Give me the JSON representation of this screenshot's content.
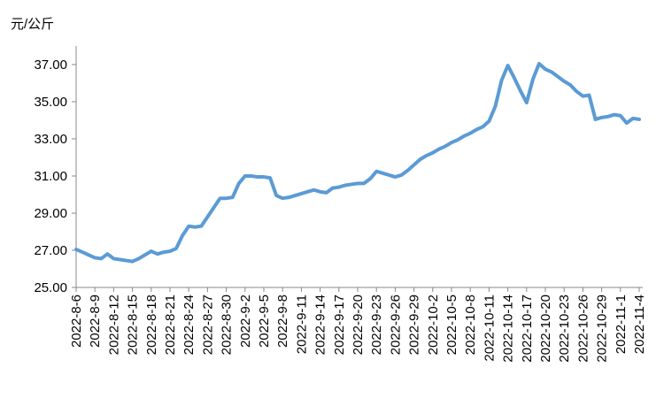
{
  "chart_data": {
    "type": "line",
    "y_label": "元/公斤",
    "color": "#5b9bd5",
    "categories": [
      "2022-8-6",
      null,
      null,
      "2022-8-9",
      null,
      null,
      "2022-8-12",
      null,
      null,
      "2022-8-15",
      null,
      null,
      "2022-8-18",
      null,
      null,
      "2022-8-21",
      null,
      null,
      "2022-8-24",
      null,
      null,
      "2022-8-27",
      null,
      null,
      "2022-8-30",
      null,
      null,
      "2022-9-2",
      null,
      null,
      "2022-9-5",
      null,
      null,
      "2022-9-8",
      null,
      null,
      "2022-9-11",
      null,
      null,
      "2022-9-14",
      null,
      null,
      "2022-9-17",
      null,
      null,
      "2022-9-20",
      null,
      null,
      "2022-9-23",
      null,
      null,
      "2022-9-26",
      null,
      null,
      "2022-9-29",
      null,
      null,
      "2022-10-2",
      null,
      null,
      "2022-10-5",
      null,
      null,
      "2022-10-8",
      null,
      null,
      "2022-10-11",
      null,
      null,
      "2022-10-14",
      null,
      null,
      "2022-10-17",
      null,
      null,
      "2022-10-20",
      null,
      null,
      "2022-10-23",
      null,
      null,
      "2022-10-26",
      null,
      null,
      "2022-10-29",
      null,
      null,
      "2022-11-1",
      null,
      null,
      "2022-11-4"
    ],
    "values": [
      27.05,
      26.9,
      26.75,
      26.6,
      26.55,
      26.8,
      26.55,
      26.5,
      26.45,
      26.4,
      26.55,
      26.75,
      26.95,
      26.8,
      26.9,
      26.95,
      27.1,
      27.8,
      28.3,
      28.25,
      28.3,
      28.8,
      29.3,
      29.8,
      29.8,
      29.85,
      30.6,
      31.0,
      31.0,
      30.95,
      30.95,
      30.9,
      29.95,
      29.8,
      29.85,
      29.95,
      30.05,
      30.15,
      30.25,
      30.15,
      30.1,
      30.35,
      30.4,
      30.5,
      30.55,
      30.6,
      30.6,
      30.85,
      31.25,
      31.15,
      31.05,
      30.95,
      31.05,
      31.3,
      31.6,
      31.9,
      32.1,
      32.25,
      32.45,
      32.6,
      32.8,
      32.95,
      33.15,
      33.3,
      33.5,
      33.65,
      33.95,
      34.75,
      36.15,
      36.95,
      36.3,
      35.6,
      34.95,
      36.2,
      37.05,
      36.75,
      36.6,
      36.35,
      36.1,
      35.9,
      35.55,
      35.3,
      35.35,
      34.05,
      34.15,
      34.2,
      34.3,
      34.25,
      33.85,
      34.1,
      34.05
    ],
    "ylim": [
      25,
      38
    ],
    "yticks": [
      {
        "value": 25,
        "label": "25.00"
      },
      {
        "value": 27,
        "label": "27.00"
      },
      {
        "value": 29,
        "label": "29.00"
      },
      {
        "value": 31,
        "label": "31.00"
      },
      {
        "value": 33,
        "label": "33.00"
      },
      {
        "value": 35,
        "label": "35.00"
      },
      {
        "value": 37,
        "label": "37.00"
      }
    ]
  }
}
